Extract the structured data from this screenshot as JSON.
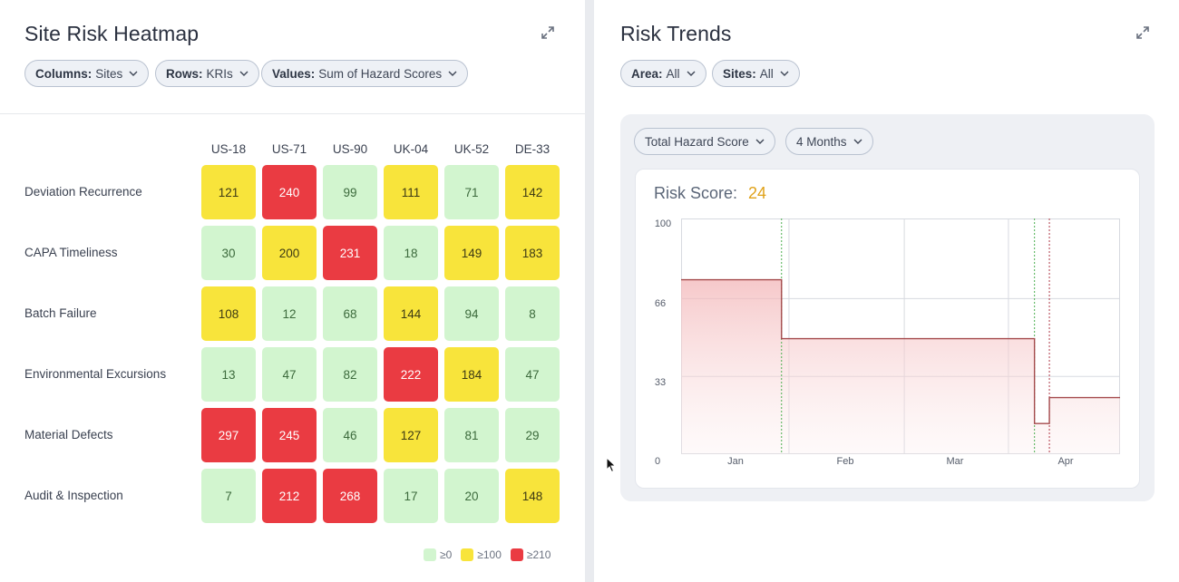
{
  "heatmap": {
    "title": "Site Risk Heatmap",
    "filters": [
      {
        "key": "Columns:",
        "value": "Sites"
      },
      {
        "key": "Rows:",
        "value": "KRIs"
      },
      {
        "key": "Values:",
        "value": "Sum of Hazard Scores"
      }
    ],
    "columns": [
      "US-18",
      "US-71",
      "US-90",
      "UK-04",
      "UK-52",
      "DE-33"
    ],
    "rows": [
      {
        "label": "Deviation Recurrence",
        "values": [
          121,
          240,
          99,
          111,
          71,
          142
        ]
      },
      {
        "label": "CAPA Timeliness",
        "values": [
          30,
          200,
          231,
          18,
          149,
          183
        ]
      },
      {
        "label": "Batch Failure",
        "values": [
          108,
          12,
          68,
          144,
          94,
          8
        ]
      },
      {
        "label": "Environmental Excursions",
        "values": [
          13,
          47,
          82,
          222,
          184,
          47
        ]
      },
      {
        "label": "Material Defects",
        "values": [
          297,
          245,
          46,
          127,
          81,
          29
        ]
      },
      {
        "label": "Audit & Inspection",
        "values": [
          7,
          212,
          268,
          17,
          20,
          148
        ]
      }
    ],
    "legend": [
      {
        "label": "≥0",
        "color": "#d2f5cf"
      },
      {
        "label": "≥100",
        "color": "#f8e43b"
      },
      {
        "label": "≥210",
        "color": "#ea3b42"
      }
    ],
    "thresholds": {
      "mid": 100,
      "high": 210
    }
  },
  "trends": {
    "title": "Risk Trends",
    "filters": [
      {
        "key": "Area:",
        "value": "All"
      },
      {
        "key": "Sites:",
        "value": "All"
      }
    ],
    "metric_select": "Total Hazard Score",
    "period_select": "4 Months",
    "score_label": "Risk Score:",
    "score_value": "24",
    "y_ticks": [
      "100",
      "66",
      "33",
      "0"
    ],
    "x_ticks": [
      "Jan",
      "Feb",
      "Mar",
      "Apr"
    ]
  },
  "chart_data": {
    "type": "area",
    "step": true,
    "x_type": "month",
    "xlabel": "",
    "ylabel": "",
    "ylim": [
      0,
      100
    ],
    "x_tick_labels": [
      "Jan",
      "Feb",
      "Mar",
      "Apr"
    ],
    "series": [
      {
        "points": [
          {
            "x": "Dec 19",
            "y": 74
          },
          {
            "x": "Jan 14",
            "y": 49
          },
          {
            "x": "Mar 23",
            "y": 13
          },
          {
            "x": "Mar 27",
            "y": 24
          },
          {
            "x": "Apr 13",
            "y": 24
          }
        ],
        "color": "#a44a4c"
      }
    ],
    "markers": [
      {
        "x": "Jan 14",
        "color": "#4caf50"
      },
      {
        "x": "Mar 23",
        "color": "#4caf50"
      },
      {
        "x": "Mar 27",
        "color": "#b03a48"
      }
    ],
    "grid": true
  }
}
